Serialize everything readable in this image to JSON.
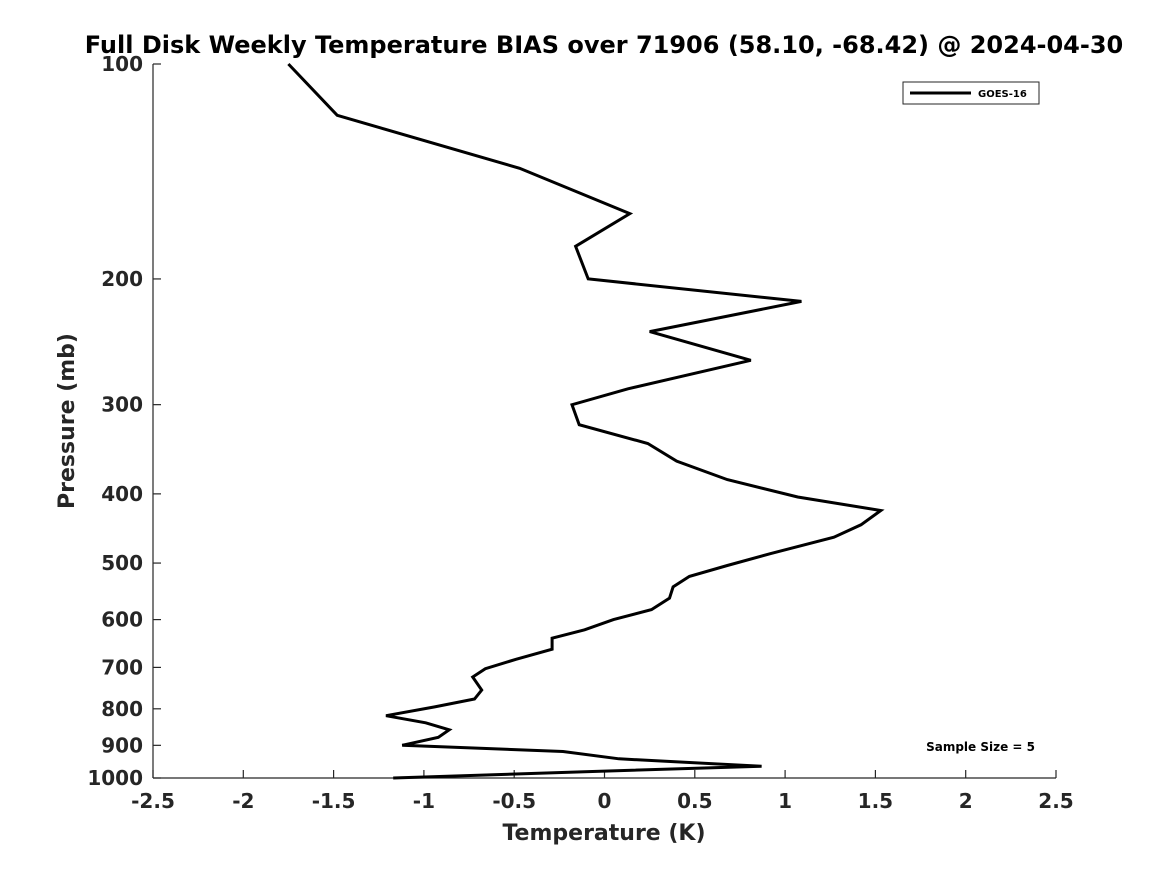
{
  "chart_data": {
    "type": "line",
    "title": "Full Disk Weekly Temperature BIAS over 71906 (58.10, -68.42) @ 2024-04-30",
    "xlabel": "Temperature (K)",
    "ylabel": "Pressure (mb)",
    "xlim": [
      -2.5,
      2.5
    ],
    "ylim": [
      100,
      1000
    ],
    "y_scale": "log",
    "y_reversed": true,
    "x_ticks": [
      -2.5,
      -2,
      -1.5,
      -1,
      -0.5,
      0,
      0.5,
      1,
      1.5,
      2,
      2.5
    ],
    "x_tick_labels": [
      "-2.5",
      "-2",
      "-1.5",
      "-1",
      "-0.5",
      "0",
      "0.5",
      "1",
      "1.5",
      "2",
      "2.5"
    ],
    "y_ticks": [
      100,
      200,
      300,
      400,
      500,
      600,
      700,
      800,
      900,
      1000
    ],
    "y_tick_labels": [
      "100",
      "200",
      "300",
      "400",
      "500",
      "600",
      "700",
      "800",
      "900",
      "1000"
    ],
    "grid": false,
    "legend_position": "top-right",
    "annotation": "Sample Size = 5",
    "series": [
      {
        "name": "GOES-16",
        "color": "#000000",
        "points": [
          {
            "x": -1.75,
            "y": 100
          },
          {
            "x": -1.48,
            "y": 118
          },
          {
            "x": -0.47,
            "y": 140
          },
          {
            "x": 0.14,
            "y": 162
          },
          {
            "x": -0.16,
            "y": 180
          },
          {
            "x": -0.09,
            "y": 200
          },
          {
            "x": 1.09,
            "y": 215
          },
          {
            "x": 0.25,
            "y": 237
          },
          {
            "x": 0.81,
            "y": 260
          },
          {
            "x": 0.13,
            "y": 285
          },
          {
            "x": -0.18,
            "y": 300
          },
          {
            "x": -0.14,
            "y": 320
          },
          {
            "x": 0.24,
            "y": 340
          },
          {
            "x": 0.4,
            "y": 360
          },
          {
            "x": 0.68,
            "y": 382
          },
          {
            "x": 1.07,
            "y": 404
          },
          {
            "x": 1.53,
            "y": 422
          },
          {
            "x": 1.42,
            "y": 442
          },
          {
            "x": 1.27,
            "y": 460
          },
          {
            "x": 0.92,
            "y": 485
          },
          {
            "x": 0.68,
            "y": 504
          },
          {
            "x": 0.47,
            "y": 522
          },
          {
            "x": 0.38,
            "y": 540
          },
          {
            "x": 0.36,
            "y": 560
          },
          {
            "x": 0.26,
            "y": 581
          },
          {
            "x": 0.05,
            "y": 600
          },
          {
            "x": -0.11,
            "y": 620
          },
          {
            "x": -0.29,
            "y": 637
          },
          {
            "x": -0.29,
            "y": 660
          },
          {
            "x": -0.49,
            "y": 682
          },
          {
            "x": -0.66,
            "y": 703
          },
          {
            "x": -0.73,
            "y": 722
          },
          {
            "x": -0.68,
            "y": 753
          },
          {
            "x": -0.72,
            "y": 775
          },
          {
            "x": -0.94,
            "y": 795
          },
          {
            "x": -1.21,
            "y": 818
          },
          {
            "x": -0.99,
            "y": 837
          },
          {
            "x": -0.86,
            "y": 856
          },
          {
            "x": -0.92,
            "y": 877
          },
          {
            "x": -1.12,
            "y": 900
          },
          {
            "x": -0.23,
            "y": 918
          },
          {
            "x": 0.08,
            "y": 940
          },
          {
            "x": 0.87,
            "y": 963
          },
          {
            "x": -0.11,
            "y": 980
          },
          {
            "x": -1.17,
            "y": 1000
          }
        ]
      }
    ]
  }
}
